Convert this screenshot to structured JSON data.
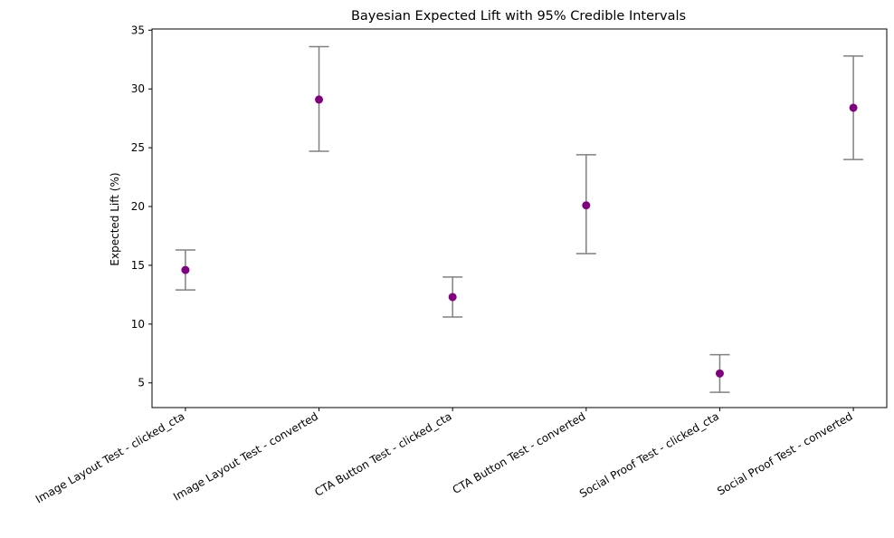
{
  "chart_data": {
    "type": "scatter",
    "title": "Bayesian Expected Lift with 95% Credible Intervals",
    "xlabel": "",
    "ylabel": "Expected Lift (%)",
    "ylim": [
      2.9,
      35.1
    ],
    "yticks": [
      5,
      10,
      15,
      20,
      25,
      30,
      35
    ],
    "categories": [
      "Image Layout Test - clicked_cta",
      "Image Layout Test - converted",
      "CTA Button Test - clicked_cta",
      "CTA Button Test - converted",
      "Social Proof Test - clicked_cta",
      "Social Proof Test - converted"
    ],
    "values": [
      14.6,
      29.1,
      12.3,
      20.1,
      5.8,
      28.4
    ],
    "lower": [
      12.9,
      24.7,
      10.6,
      16.0,
      4.2,
      24.0
    ],
    "upper": [
      16.3,
      33.6,
      14.0,
      24.4,
      7.4,
      32.8
    ],
    "grid": false,
    "marker_color": "#800080",
    "errorbar_color": "#808080"
  }
}
